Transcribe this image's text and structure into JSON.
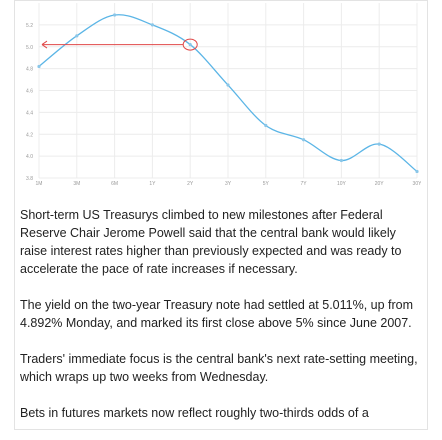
{
  "chart_data": {
    "type": "line",
    "title": "",
    "xlabel": "",
    "ylabel": "",
    "x": [
      "1M",
      "3M",
      "6M",
      "1Y",
      "2Y",
      "3Y",
      "5Y",
      "7Y",
      "10Y",
      "20Y",
      "30Y"
    ],
    "series": [
      {
        "values": [
          4.82,
          5.1,
          5.29,
          5.2,
          5.02,
          4.65,
          4.28,
          4.15,
          3.96,
          4.11,
          3.86
        ]
      }
    ],
    "ylim": [
      3.8,
      5.4
    ],
    "yticks": [
      "3.8",
      "4.0",
      "4.2",
      "4.4",
      "4.6",
      "4.8",
      "5.0",
      "5.2"
    ],
    "grid": true,
    "colors": {
      "line": "#5bb5e6",
      "marker": "#8ac6e8",
      "annotation": "#e04848",
      "grid": "#ececec"
    },
    "annotation": {
      "kind": "arrow-from-circle",
      "x": "2Y",
      "y": 5.02,
      "points_to": "y-axis"
    }
  },
  "article": {
    "paragraphs": [
      "Short-term US Treasurys climbed to new milestones after Federal Reserve Chair Jerome Powell said that the central bank would likely raise interest rates higher than previously expected and was ready to accelerate the pace of rate increases if necessary.",
      "The yield on the two-year Treasury note had settled at 5.011%, up from 4.892% Monday, and marked its first close above 5% since June 2007.",
      "Traders' immediate focus is the central bank's next rate-setting meeting, which wraps up two weeks from Wednesday.",
      "Bets in futures markets now reflect roughly two-thirds odds of a"
    ]
  }
}
